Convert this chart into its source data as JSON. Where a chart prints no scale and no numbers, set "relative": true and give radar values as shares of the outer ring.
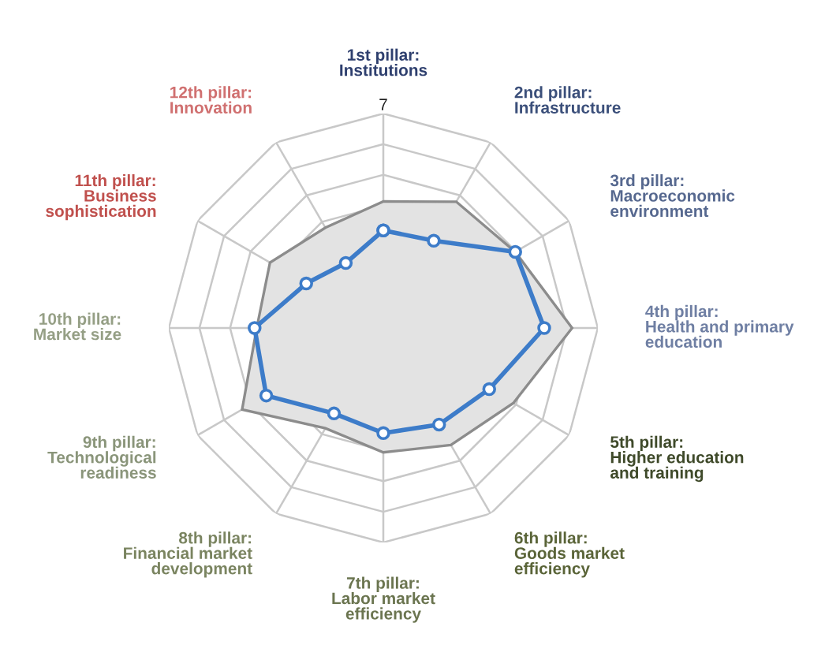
{
  "chart_data": {
    "type": "radar",
    "relative": true,
    "grid": true,
    "categories": [
      "1st pillar:\nInstitutions",
      "2nd pillar:\nInfrastructure",
      "3rd pillar:\nMacroeconomic\nenvironment",
      "4th pillar:\nHealth and primary\neducation",
      "5th pillar:\nHigher education\nand training",
      "6th pillar:\nGoods market\nefficiency",
      "7th pillar:\nLabor market\nefficiency",
      "8th pillar:\nFinancial market\ndevelopment",
      "9th pillar:\nTechnological\nreadiness",
      "10th pillar:\nMarket size",
      "11th pillar:\nBusiness\nsophistication",
      "12th pillar:\nInnovation"
    ],
    "series": [
      {
        "color": "#8c8c8c",
        "marker": "none",
        "values": [
          0.59,
          0.68,
          0.71,
          0.88,
          0.7,
          0.63,
          0.58,
          0.54,
          0.76,
          0.59,
          0.61,
          0.54
        ]
      },
      {
        "color": "#3d7cc9",
        "marker": "circle",
        "values": [
          0.455,
          0.47,
          0.71,
          0.75,
          0.57,
          0.52,
          0.49,
          0.46,
          0.63,
          0.6,
          0.415,
          0.35
        ]
      }
    ],
    "annotations": [
      "7"
    ]
  }
}
